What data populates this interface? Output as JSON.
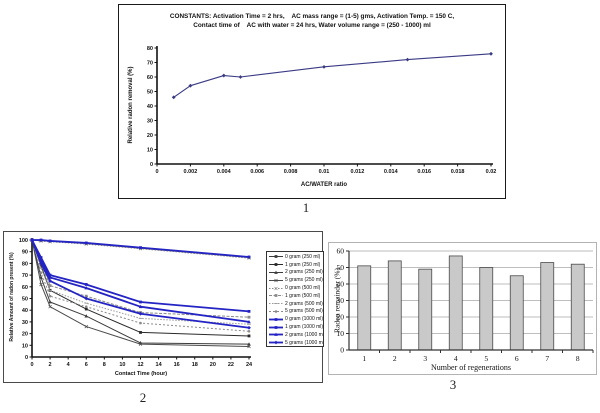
{
  "figure_labels": [
    "1",
    "2",
    "3"
  ],
  "colors": {
    "navy_line": "#3a3a85",
    "blue_series": "#2424c4",
    "bar_fill": "#c9c9c9"
  },
  "chart_data": [
    {
      "type": "line",
      "title_line1": "CONSTANTS: Activation Time = 2 hrs,    AC mass range = (1-5) gms, Activation Temp. = 150 C,",
      "title_line2": "Contact time of    AC with water = 24 hrs, Water volume range = (250 - 1000) ml",
      "xlabel": "AC/WATER ratio",
      "ylabel": "Relative radon removal (%)",
      "xlim": [
        0,
        0.02
      ],
      "ylim": [
        0,
        80
      ],
      "grid": false,
      "legend_position": "none",
      "xticks": [
        {
          "v": 0,
          "label": "0"
        },
        {
          "v": 0.002,
          "label": "0.002"
        },
        {
          "v": 0.004,
          "label": "0.004"
        },
        {
          "v": 0.006,
          "label": "0.006"
        },
        {
          "v": 0.008,
          "label": "0.008"
        },
        {
          "v": 0.01,
          "label": "0.01"
        },
        {
          "v": 0.012,
          "label": "0.012"
        },
        {
          "v": 0.014,
          "label": "0.014"
        },
        {
          "v": 0.016,
          "label": "0.016"
        },
        {
          "v": 0.018,
          "label": "0.018"
        },
        {
          "v": 0.02,
          "label": "0.02"
        }
      ],
      "yticks": [
        0,
        10,
        20,
        30,
        40,
        50,
        60,
        70,
        80
      ],
      "x": [
        0.001,
        0.002,
        0.004,
        0.005,
        0.01,
        0.015,
        0.02
      ],
      "series": [
        {
          "name": "Relative radon removal",
          "color": "#3a3a85",
          "width": 1.1,
          "dash": "",
          "marker": "diamond",
          "values": [
            46,
            54,
            61,
            60,
            67,
            72,
            76
          ]
        }
      ]
    },
    {
      "type": "line",
      "xlabel": "Contact Time (hour)",
      "ylabel": "Relative Amount of radon present (%)",
      "xlim": [
        0,
        24
      ],
      "ylim": [
        0,
        100
      ],
      "grid": false,
      "legend_position": "right-inside",
      "xticks": [
        {
          "v": 0,
          "label": "0"
        },
        {
          "v": 2,
          "label": "2"
        },
        {
          "v": 4,
          "label": "4"
        },
        {
          "v": 6,
          "label": "6"
        },
        {
          "v": 8,
          "label": "8"
        },
        {
          "v": 10,
          "label": "10"
        },
        {
          "v": 12,
          "label": "12"
        },
        {
          "v": 14,
          "label": "14"
        },
        {
          "v": 16,
          "label": "16"
        },
        {
          "v": 18,
          "label": "18"
        },
        {
          "v": 20,
          "label": "20"
        },
        {
          "v": 22,
          "label": "22"
        },
        {
          "v": 24,
          "label": "24"
        }
      ],
      "yticks": [
        0,
        10,
        20,
        30,
        40,
        50,
        60,
        70,
        80,
        90,
        100
      ],
      "x": [
        0,
        1,
        2,
        6,
        12,
        24
      ],
      "series": [
        {
          "name": "0 gram (250 ml)",
          "color": "#3c3c3c",
          "width": 1,
          "dash": "",
          "marker": "square",
          "values": [
            100,
            99.5,
            99,
            97,
            93,
            85
          ]
        },
        {
          "name": "1 gram (250 ml)",
          "color": "#2a2a2a",
          "width": 1,
          "dash": "",
          "marker": "square",
          "values": [
            100,
            78,
            57,
            41,
            21,
            18
          ]
        },
        {
          "name": "2 grams (250 ml)",
          "color": "#3c3c3c",
          "width": 1,
          "dash": "",
          "marker": "triangle",
          "values": [
            100,
            68,
            47,
            35,
            12,
            11
          ]
        },
        {
          "name": "5 grams (250 ml)",
          "color": "#4a4a4a",
          "width": 1,
          "dash": "",
          "marker": "x",
          "values": [
            100,
            62,
            43,
            26,
            11,
            9
          ]
        },
        {
          "name": "0 gram (500 ml)",
          "color": "#8a8a8a",
          "width": 1,
          "dash": "1.5,1.5",
          "marker": "x",
          "values": [
            100,
            99,
            98.5,
            96.5,
            92.5,
            84.5
          ]
        },
        {
          "name": "1 gram (500 ml)",
          "color": "#8a8a8a",
          "width": 1,
          "dash": "3,1.5",
          "marker": "square",
          "values": [
            100,
            80,
            61,
            52,
            38,
            34
          ]
        },
        {
          "name": "2 grams (500 ml)",
          "color": "#9a9a9a",
          "width": 1,
          "dash": "1.5,1.5",
          "marker": "dash",
          "values": [
            100,
            76,
            57,
            46,
            33,
            28
          ]
        },
        {
          "name": "5 grams (500 ml)",
          "color": "#8a8a8a",
          "width": 1,
          "dash": "2,2",
          "marker": "circle",
          "values": [
            100,
            72,
            52,
            43,
            29,
            22
          ]
        },
        {
          "name": "0 gram (1000 ml)",
          "color": "#2424c4",
          "width": 1.8,
          "dash": "",
          "marker": "square",
          "values": [
            100,
            100,
            99.2,
            97.5,
            93.5,
            85.5
          ]
        },
        {
          "name": "1 gram (1000 ml)",
          "color": "#2424c4",
          "width": 1.8,
          "dash": "",
          "marker": "square",
          "values": [
            100,
            85,
            70,
            62,
            47,
            39
          ]
        },
        {
          "name": "2 grams (1000 ml)",
          "color": "#2424c4",
          "width": 1.8,
          "dash": "",
          "marker": "triangle",
          "values": [
            100,
            82,
            68,
            59,
            43,
            30
          ]
        },
        {
          "name": "5 grams (1000 ml)",
          "color": "#2424c4",
          "width": 1.8,
          "dash": "",
          "marker": "diamond",
          "values": [
            100,
            80,
            65,
            50,
            37,
            25
          ]
        }
      ]
    },
    {
      "type": "bar",
      "xlabel": "Number of regenerations",
      "ylabel": "Radon remainder (%)",
      "categories": [
        "1",
        "2",
        "3",
        "4",
        "5",
        "6",
        "7",
        "8"
      ],
      "values": [
        51,
        54,
        49,
        57,
        50,
        45,
        53,
        52
      ],
      "ylim": [
        0,
        60
      ],
      "yticks": [
        0,
        10,
        20,
        30,
        40,
        50,
        60
      ],
      "grid": true,
      "legend_position": "none",
      "bar_color": "#c9c9c9",
      "bar_border": "#4a4a4a"
    }
  ]
}
